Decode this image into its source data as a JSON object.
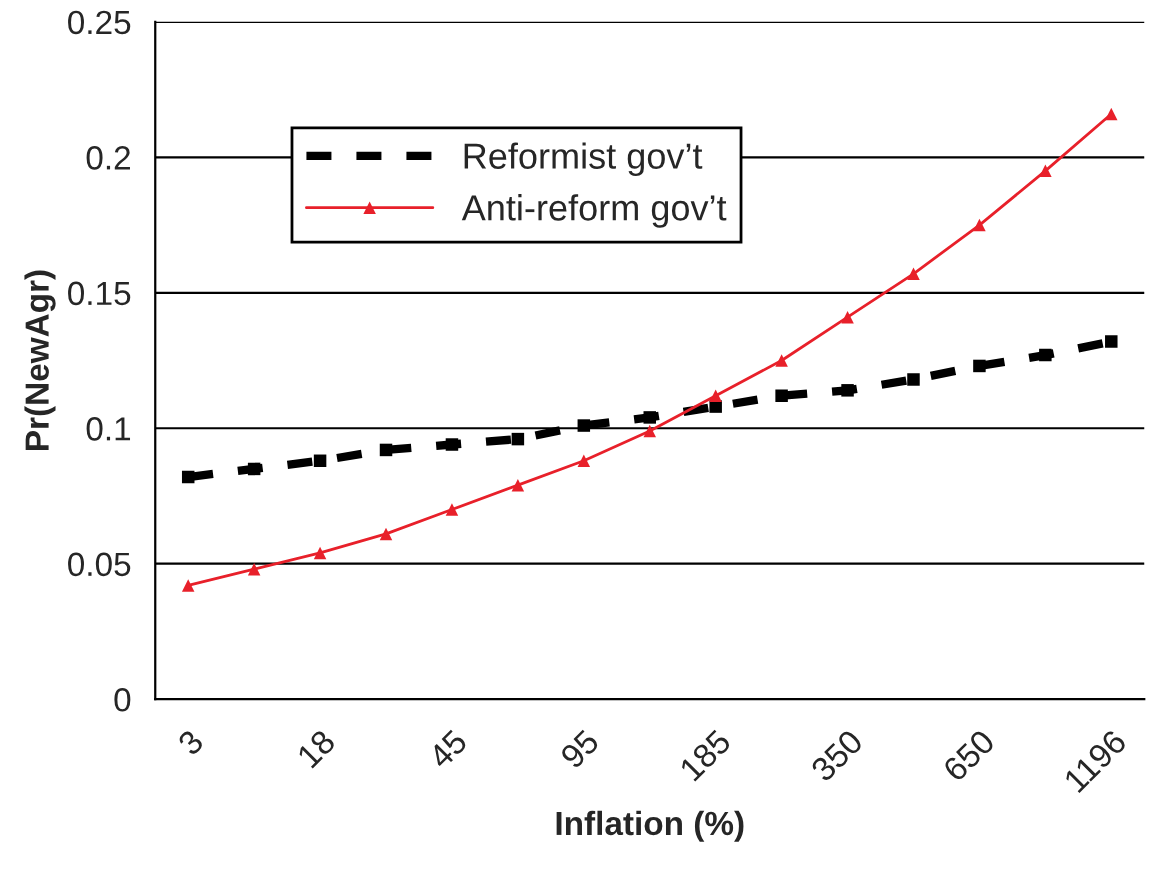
{
  "chart_data": {
    "type": "line",
    "xlabel": "Inflation (%)",
    "ylabel": "Pr(NewAgr)",
    "categories": [
      "3",
      null,
      "18",
      null,
      "45",
      null,
      "95",
      null,
      "185",
      null,
      "350",
      null,
      "650",
      null,
      "1196"
    ],
    "series": [
      {
        "name": "Reformist gov’t",
        "color": "#000000",
        "marker": "square",
        "line_style": "dashed",
        "values": [
          0.082,
          0.085,
          0.088,
          0.092,
          0.094,
          0.096,
          0.101,
          0.104,
          0.108,
          0.112,
          0.114,
          0.118,
          0.123,
          0.127,
          0.132
        ]
      },
      {
        "name": "Anti-reform gov’t",
        "color": "#e8202a",
        "marker": "triangle",
        "line_style": "solid",
        "values": [
          0.042,
          0.048,
          0.054,
          0.061,
          0.07,
          0.079,
          0.088,
          0.099,
          0.112,
          0.125,
          0.141,
          0.157,
          0.175,
          0.195,
          0.216
        ]
      }
    ],
    "ylim": [
      0,
      0.25
    ],
    "yticks": [
      0,
      0.05,
      0.1,
      0.15,
      0.2,
      0.25
    ],
    "grid": "y",
    "legend": "top left"
  }
}
